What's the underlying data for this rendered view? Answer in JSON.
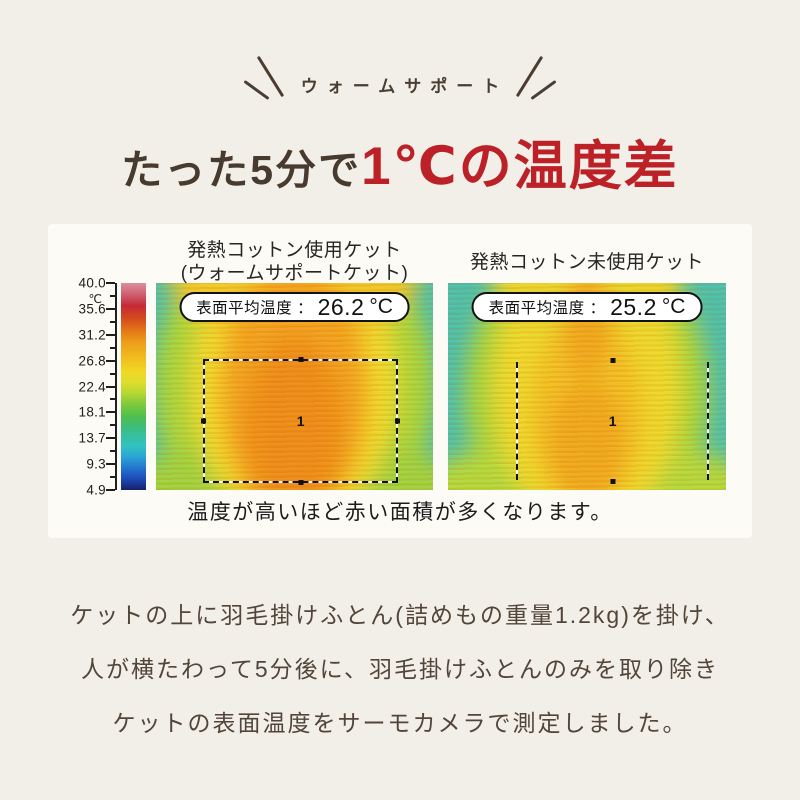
{
  "page": {
    "background": "#f2efe8",
    "panel_background": "#fcfbf6",
    "accent_red": "#bb2126",
    "text_brown": "#4a3d31"
  },
  "header": {
    "eyebrow": "ウォームサポート",
    "title_plain": "たった5分で",
    "title_highlight": "1℃の温度差"
  },
  "comparison": {
    "left": {
      "label_line1": "発熱コットン使用ケット",
      "label_line2": "(ウォームサポートケット)",
      "pill_label": "表面平均温度",
      "pill_separator": "：",
      "temp_value": "26.2",
      "temp_unit": "°C",
      "marker": "1"
    },
    "right": {
      "label_line1": "発熱コットン未使用ケット",
      "pill_label": "表面平均温度",
      "pill_separator": "：",
      "temp_value": "25.2",
      "temp_unit": "°C",
      "marker": "1"
    },
    "scale": {
      "unit": "℃",
      "tick_labels": [
        "40.0",
        "35.6",
        "31.2",
        "26.8",
        "22.4",
        "18.1",
        "13.7",
        "9.3",
        "4.9"
      ]
    },
    "caption": "温度が高いほど赤い面積が多くなります。"
  },
  "footnote": {
    "lines": [
      "ケットの上に羽毛掛けふとん(詰めもの重量1.2kg)を掛け、",
      "人が横たわって5分後に、羽毛掛けふとんのみを取り除き",
      "ケットの表面温度をサーモカメラで測定しました。"
    ]
  }
}
